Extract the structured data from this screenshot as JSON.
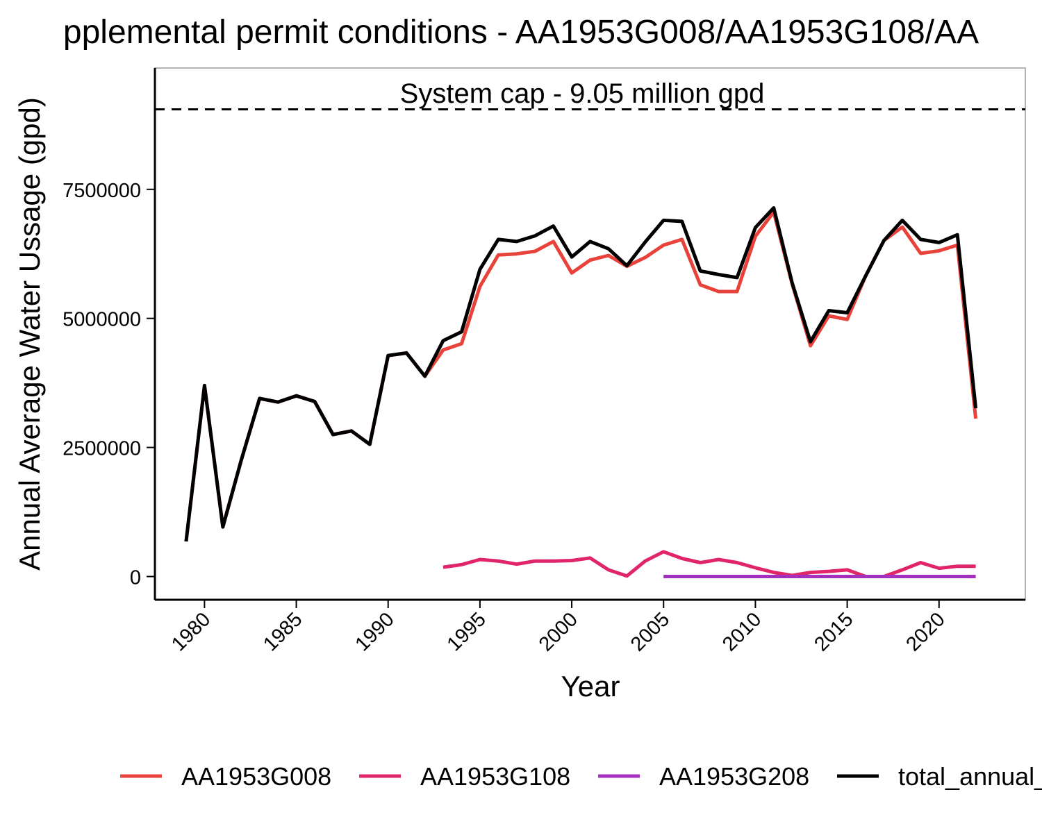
{
  "chart_data": {
    "type": "line",
    "title": "pplemental permit conditions - AA1953G008/AA1953G108/AA",
    "xlabel": "Year",
    "ylabel": "Annual Average Water Ussage (gpd)",
    "xlim": [
      1977.3,
      2024.7
    ],
    "ylim": [
      -450000,
      9850000
    ],
    "x_ticks": [
      1980,
      1985,
      1990,
      1995,
      2000,
      2005,
      2010,
      2015,
      2020
    ],
    "y_ticks": [
      0,
      2500000,
      5000000,
      7500000
    ],
    "y_tick_labels": [
      "0",
      "2500000",
      "5000000",
      "7500000"
    ],
    "x_tick_labels": [
      "1980",
      "1985",
      "1990",
      "1995",
      "2000",
      "2005",
      "2010",
      "2015",
      "2020"
    ],
    "grid": false,
    "legend_position": "bottom",
    "reference_line": {
      "y": 9050000,
      "label": "System cap - 9.05 million gpd",
      "style": "dashed",
      "color": "#000000"
    },
    "series": [
      {
        "name": "AA1953G008",
        "color": "#e8423a",
        "x": [
          1979,
          1980,
          1981,
          1982,
          1983,
          1984,
          1985,
          1986,
          1987,
          1988,
          1989,
          1990,
          1991,
          1992,
          1993,
          1994,
          1995,
          1996,
          1997,
          1998,
          1999,
          2000,
          2001,
          2002,
          2003,
          2004,
          2005,
          2006,
          2007,
          2008,
          2009,
          2010,
          2011,
          2012,
          2013,
          2014,
          2015,
          2016,
          2017,
          2018,
          2019,
          2020,
          2021,
          2022
        ],
        "values": [
          680000,
          3700000,
          960000,
          2250000,
          3450000,
          3380000,
          3500000,
          3390000,
          2750000,
          2820000,
          2560000,
          4280000,
          4330000,
          3880000,
          4390000,
          4510000,
          5620000,
          6230000,
          6250000,
          6300000,
          6490000,
          5880000,
          6130000,
          6220000,
          6010000,
          6180000,
          6420000,
          6530000,
          5650000,
          5520000,
          5520000,
          6590000,
          7060000,
          5670000,
          4470000,
          5050000,
          4980000,
          5820000,
          6510000,
          6770000,
          6260000,
          6310000,
          6420000,
          3060000
        ]
      },
      {
        "name": "AA1953G108",
        "color": "#e0256a",
        "x": [
          1993,
          1994,
          1995,
          1996,
          1997,
          1998,
          1999,
          2000,
          2001,
          2002,
          2003,
          2004,
          2005,
          2006,
          2007,
          2008,
          2009,
          2010,
          2011,
          2012,
          2013,
          2014,
          2015,
          2016,
          2017,
          2018,
          2019,
          2020,
          2021,
          2022
        ],
        "values": [
          180000,
          230000,
          330000,
          300000,
          240000,
          300000,
          300000,
          310000,
          360000,
          130000,
          10000,
          300000,
          480000,
          350000,
          270000,
          330000,
          270000,
          170000,
          80000,
          20000,
          80000,
          100000,
          130000,
          0,
          0,
          130000,
          270000,
          160000,
          200000,
          200000
        ]
      },
      {
        "name": "AA1953G208",
        "color": "#a52fbf",
        "x": [
          2005,
          2006,
          2007,
          2008,
          2009,
          2010,
          2011,
          2012,
          2013,
          2014,
          2015,
          2016,
          2017,
          2018,
          2019,
          2020,
          2021,
          2022
        ],
        "values": [
          0,
          0,
          0,
          0,
          0,
          0,
          0,
          0,
          0,
          0,
          0,
          0,
          0,
          0,
          0,
          0,
          0,
          0
        ]
      },
      {
        "name": "total_annual_",
        "color": "#000000",
        "x": [
          1979,
          1980,
          1981,
          1982,
          1983,
          1984,
          1985,
          1986,
          1987,
          1988,
          1989,
          1990,
          1991,
          1992,
          1993,
          1994,
          1995,
          1996,
          1997,
          1998,
          1999,
          2000,
          2001,
          2002,
          2003,
          2004,
          2005,
          2006,
          2007,
          2008,
          2009,
          2010,
          2011,
          2012,
          2013,
          2014,
          2015,
          2016,
          2017,
          2018,
          2019,
          2020,
          2021,
          2022
        ],
        "values": [
          680000,
          3700000,
          960000,
          2250000,
          3450000,
          3380000,
          3500000,
          3390000,
          2750000,
          2820000,
          2560000,
          4280000,
          4330000,
          3880000,
          4570000,
          4740000,
          5950000,
          6530000,
          6490000,
          6600000,
          6790000,
          6190000,
          6490000,
          6350000,
          6020000,
          6480000,
          6900000,
          6880000,
          5920000,
          5850000,
          5790000,
          6760000,
          7140000,
          5690000,
          4550000,
          5150000,
          5110000,
          5820000,
          6510000,
          6900000,
          6530000,
          6470000,
          6620000,
          3260000
        ]
      }
    ]
  }
}
